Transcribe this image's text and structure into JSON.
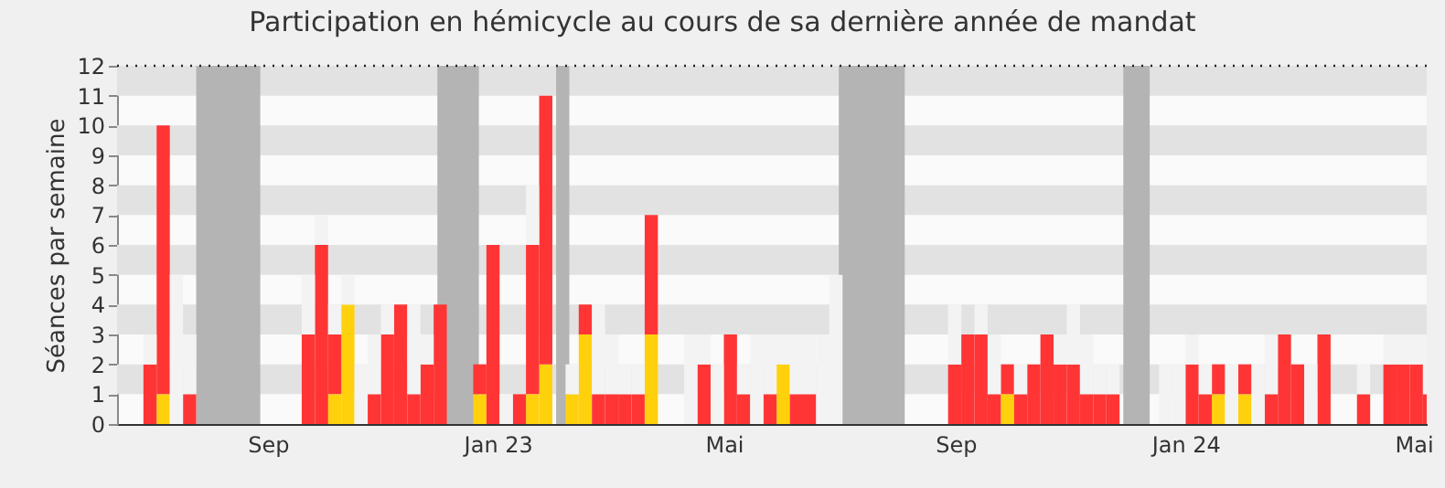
{
  "chart_data": {
    "type": "bar",
    "title": "Participation en hémicycle au cours de sa dernière année de mandat",
    "ylabel": "Séances par semaine",
    "stacked": true,
    "legend": false,
    "grid": false,
    "x": [
      "2022-06-20",
      "2022-06-27",
      "2022-07-04",
      "2022-07-11",
      "2022-07-18",
      "2022-07-25",
      "2022-08-01",
      "2022-08-08",
      "2022-08-15",
      "2022-08-22",
      "2022-08-29",
      "2022-09-05",
      "2022-09-12",
      "2022-09-19",
      "2022-09-26",
      "2022-10-03",
      "2022-10-10",
      "2022-10-17",
      "2022-10-24",
      "2022-10-31",
      "2022-11-07",
      "2022-11-14",
      "2022-11-21",
      "2022-11-28",
      "2022-12-05",
      "2022-12-12",
      "2022-12-19",
      "2022-12-26",
      "2023-01-02",
      "2023-01-09",
      "2023-01-16",
      "2023-01-23",
      "2023-01-30",
      "2023-02-06",
      "2023-02-13",
      "2023-02-20",
      "2023-02-27",
      "2023-03-06",
      "2023-03-13",
      "2023-03-20",
      "2023-03-27",
      "2023-04-03",
      "2023-04-10",
      "2023-04-17",
      "2023-04-24",
      "2023-05-01",
      "2023-05-08",
      "2023-05-15",
      "2023-05-22",
      "2023-05-29",
      "2023-06-05",
      "2023-06-12",
      "2023-06-19",
      "2023-06-26",
      "2023-07-03",
      "2023-07-10",
      "2023-07-17",
      "2023-07-24",
      "2023-07-31",
      "2023-08-07",
      "2023-08-14",
      "2023-08-21",
      "2023-08-28",
      "2023-09-04",
      "2023-09-11",
      "2023-09-18",
      "2023-09-25",
      "2023-10-02",
      "2023-10-09",
      "2023-10-16",
      "2023-10-23",
      "2023-10-30",
      "2023-11-06",
      "2023-11-13",
      "2023-11-20",
      "2023-11-27",
      "2023-12-04",
      "2023-12-11",
      "2023-12-18",
      "2023-12-25",
      "2024-01-01",
      "2024-01-08",
      "2024-01-15",
      "2024-01-22",
      "2024-01-29",
      "2024-02-05",
      "2024-02-12",
      "2024-02-19",
      "2024-02-26",
      "2024-03-04",
      "2024-03-11",
      "2024-03-18",
      "2024-03-25",
      "2024-04-01",
      "2024-04-08",
      "2024-04-15",
      "2024-04-22",
      "2024-04-29",
      "2024-05-06"
    ],
    "series": [
      {
        "color": "#ffd10d",
        "values": [
          0,
          0,
          1,
          0,
          0,
          0,
          0,
          0,
          0,
          0,
          0,
          0,
          0,
          0,
          0,
          1,
          4,
          0,
          0,
          0,
          0,
          0,
          0,
          0,
          0,
          0,
          1,
          0,
          0,
          0,
          1,
          2,
          0,
          1,
          3,
          0,
          0,
          0,
          0,
          3,
          0,
          0,
          0,
          0,
          0,
          0,
          0,
          0,
          0,
          2,
          0,
          0,
          0,
          0,
          0,
          0,
          0,
          0,
          0,
          0,
          0,
          0,
          0,
          0,
          0,
          0,
          1,
          0,
          0,
          0,
          0,
          0,
          0,
          0,
          0,
          0,
          0,
          0,
          0,
          0,
          0,
          0,
          1,
          0,
          1,
          0,
          0,
          0,
          0,
          0,
          0,
          0,
          0,
          0,
          0,
          0,
          0,
          0,
          0
        ]
      },
      {
        "color": "#ff3535",
        "values": [
          0,
          2,
          9,
          0,
          1,
          0,
          0,
          0,
          0,
          0,
          0,
          0,
          0,
          3,
          6,
          2,
          0,
          0,
          1,
          3,
          4,
          1,
          2,
          4,
          0,
          0,
          1,
          6,
          0,
          1,
          5,
          9,
          0,
          0,
          1,
          1,
          1,
          1,
          1,
          4,
          0,
          0,
          0,
          2,
          0,
          3,
          1,
          0,
          1,
          0,
          1,
          1,
          0,
          0,
          0,
          0,
          0,
          0,
          0,
          0,
          0,
          0,
          2,
          3,
          3,
          1,
          1,
          1,
          2,
          3,
          2,
          2,
          1,
          1,
          1,
          0,
          0,
          0,
          0,
          0,
          2,
          1,
          1,
          0,
          1,
          0,
          1,
          3,
          2,
          0,
          3,
          0,
          0,
          1,
          0,
          2,
          2,
          2,
          1
        ]
      },
      {
        "color": "#f3f3f3",
        "values": [
          0,
          1,
          0,
          5,
          2,
          0,
          0,
          0,
          0,
          0,
          0,
          0,
          0,
          2,
          1,
          1,
          1,
          2,
          2,
          1,
          0,
          3,
          1,
          0,
          0,
          0,
          0,
          0,
          1,
          0,
          2,
          0,
          0,
          1,
          0,
          3,
          2,
          1,
          1,
          0,
          0,
          0,
          3,
          1,
          2,
          0,
          1,
          3,
          2,
          1,
          2,
          2,
          3,
          5,
          0,
          0,
          0,
          0,
          0,
          0,
          0,
          0,
          2,
          0,
          1,
          2,
          0,
          1,
          0,
          0,
          1,
          2,
          2,
          1,
          1,
          0,
          0,
          0,
          2,
          2,
          1,
          1,
          0,
          2,
          0,
          2,
          2,
          0,
          0,
          2,
          0,
          0,
          0,
          1,
          0,
          1,
          1,
          1,
          2
        ]
      }
    ],
    "xlim": [
      "2022-06-13",
      "2024-05-08"
    ],
    "xticks": [
      {
        "value": "2022-09-01",
        "label": "Sep"
      },
      {
        "value": "2023-01-01",
        "label": "Jan 23"
      },
      {
        "value": "2023-05-01",
        "label": "Mai"
      },
      {
        "value": "2023-09-01",
        "label": "Sep"
      },
      {
        "value": "2024-01-01",
        "label": "Jan 24"
      },
      {
        "value": "2024-05-01",
        "label": "Mai"
      }
    ],
    "ylim": [
      0,
      12
    ],
    "yticks": [
      0,
      1,
      2,
      3,
      4,
      5,
      6,
      7,
      8,
      9,
      10,
      11,
      12
    ],
    "bands": [
      {
        "axis": "y",
        "from": 1,
        "to": 2,
        "color": "#e2e2e2"
      },
      {
        "axis": "y",
        "from": 3,
        "to": 4,
        "color": "#e2e2e2"
      },
      {
        "axis": "y",
        "from": 5,
        "to": 6,
        "color": "#e2e2e2"
      },
      {
        "axis": "y",
        "from": 7,
        "to": 8,
        "color": "#e2e2e2"
      },
      {
        "axis": "y",
        "from": 9,
        "to": 10,
        "color": "#e2e2e2"
      },
      {
        "axis": "y",
        "from": 11,
        "to": 12,
        "color": "#e2e2e2"
      },
      {
        "axis": "x",
        "from": "2022-07-25",
        "to": "2022-08-28",
        "color": "#b4b4b4"
      },
      {
        "axis": "x",
        "from": "2022-11-30",
        "to": "2022-12-22",
        "color": "#b4b4b4"
      },
      {
        "axis": "x",
        "from": "2023-02-01",
        "to": "2023-02-08",
        "color": "#b4b4b4"
      },
      {
        "axis": "x",
        "from": "2023-07-01",
        "to": "2023-08-05",
        "color": "#b4b4b4"
      },
      {
        "axis": "x",
        "from": "2023-11-29",
        "to": "2023-12-13",
        "color": "#b4b4b4"
      }
    ],
    "ref_lines": [
      {
        "axis": "y",
        "value": 12,
        "color": "#222222",
        "line_style": "dotted"
      }
    ]
  }
}
